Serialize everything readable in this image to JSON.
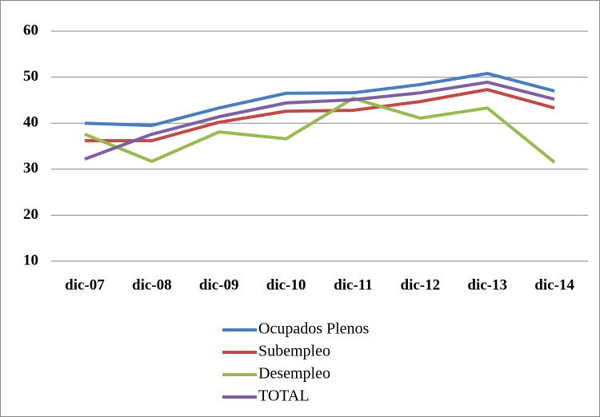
{
  "chart_data": {
    "type": "line",
    "categories": [
      "dic-07",
      "dic-08",
      "dic-09",
      "dic-10",
      "dic-11",
      "dic-12",
      "dic-13",
      "dic-14"
    ],
    "series": [
      {
        "name": "Ocupados Plenos",
        "color": "#4a7ebb",
        "values": [
          40.0,
          39.5,
          43.3,
          46.5,
          46.6,
          48.4,
          50.8,
          47.0
        ]
      },
      {
        "name": "Subempleo",
        "color": "#be4b48",
        "values": [
          36.2,
          36.2,
          40.2,
          42.6,
          42.8,
          44.7,
          47.3,
          43.3
        ]
      },
      {
        "name": "Desempleo",
        "color": "#98b954",
        "values": [
          37.6,
          31.7,
          38.1,
          36.6,
          45.4,
          41.1,
          43.3,
          31.5
        ]
      },
      {
        "name": "TOTAL",
        "color": "#7d60a0",
        "values": [
          32.2,
          37.6,
          41.4,
          44.4,
          45.1,
          46.6,
          48.9,
          45.2
        ]
      }
    ],
    "ylim": [
      10,
      60
    ],
    "yticks": [
      10,
      20,
      30,
      40,
      50,
      60
    ],
    "grid": true,
    "legend": "bottom"
  }
}
